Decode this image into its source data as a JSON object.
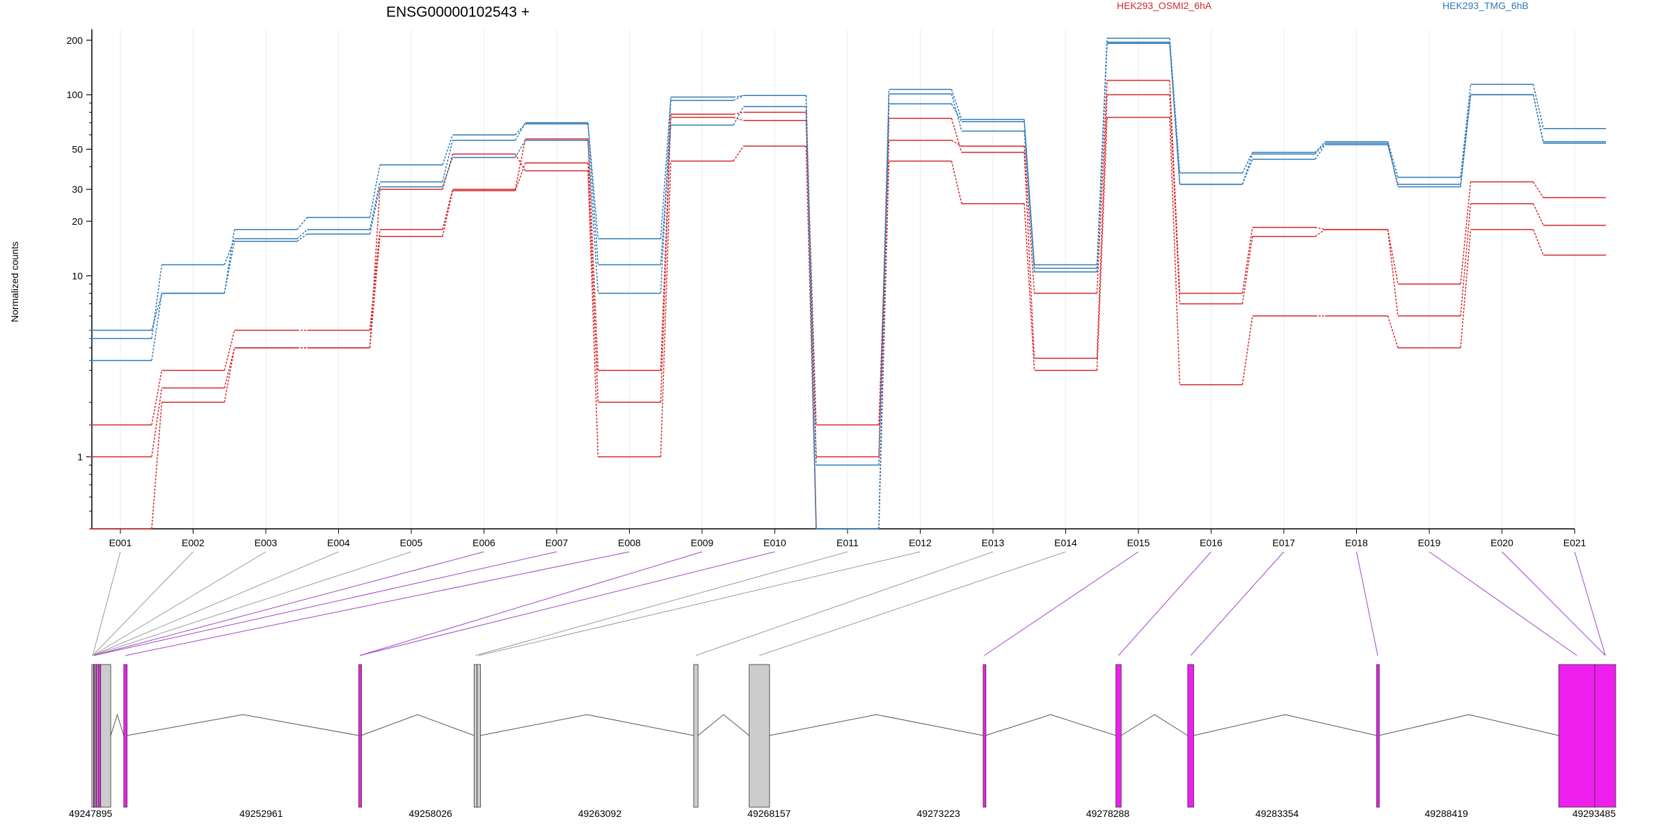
{
  "chart_data": {
    "type": "line",
    "title": "ENSG00000102543 +",
    "ylabel": "Normalized counts",
    "xlabel": "",
    "yscale": "log",
    "ylim": [
      0.4,
      230
    ],
    "yticks": [
      1,
      10,
      20,
      30,
      50,
      100,
      200
    ],
    "grid": "vertical-light",
    "legend_position": "top-right",
    "colors": {
      "HEK293_OSMI2_6hA": "#d62728",
      "HEK293_TMG_6hB": "#2f7ab8",
      "highlight": "#ee1fee",
      "exon_gray": "#cccccc"
    },
    "categories": [
      "E001",
      "E002",
      "E003",
      "E004",
      "E005",
      "E006",
      "E007",
      "E008",
      "E009",
      "E010",
      "E011",
      "E012",
      "E013",
      "E014",
      "E015",
      "E016",
      "E017",
      "E018",
      "E019",
      "E020",
      "E021"
    ],
    "series": [
      {
        "name": "HEK293_OSMI2_6hA",
        "values": [
          1.5,
          3,
          5,
          5,
          18,
          30,
          57,
          3,
          78,
          80,
          1.5,
          56,
          52,
          8,
          120,
          8,
          18.5,
          18,
          9,
          33,
          27
        ]
      },
      {
        "name": "HEK293_OSMI2_6hA",
        "values": [
          1.0,
          2.4,
          4,
          4,
          16.5,
          29.5,
          42,
          2,
          75,
          72,
          1.0,
          74,
          48,
          3.5,
          100,
          7,
          16.5,
          18,
          6,
          25,
          19
        ]
      },
      {
        "name": "HEK293_OSMI2_6hA",
        "values": [
          0.4,
          2,
          4,
          4,
          30,
          47,
          38,
          1.0,
          43,
          52,
          0.4,
          43,
          25,
          3,
          75,
          2.5,
          6,
          6,
          4,
          18,
          13
        ]
      },
      {
        "name": "HEK293_TMG_6hB",
        "values": [
          5,
          8,
          18,
          21,
          41,
          60,
          69,
          16,
          97,
          99,
          0.9,
          107,
          73,
          11.5,
          205,
          37,
          48,
          55,
          35,
          114,
          65
        ]
      },
      {
        "name": "HEK293_TMG_6hB",
        "values": [
          4.5,
          11.5,
          16,
          18,
          33,
          56,
          70,
          11.5,
          68,
          86,
          0.4,
          89,
          71,
          11,
          195,
          32,
          47,
          54,
          31,
          100,
          55
        ]
      },
      {
        "name": "HEK293_TMG_6hB",
        "values": [
          3.4,
          8,
          15.5,
          17,
          31,
          45,
          56,
          8,
          93,
          99,
          0.4,
          101,
          63,
          10.5,
          192,
          32,
          44,
          53,
          32,
          100,
          54
        ]
      }
    ],
    "gene_model": {
      "coords": [
        "49247895",
        "49252961",
        "49258026",
        "49263092",
        "49268157",
        "49273223",
        "49278288",
        "49283354",
        "49288419",
        "49293485"
      ],
      "exons": [
        {
          "id": "E001",
          "start": 49247895,
          "end": 49247945,
          "color": "gray"
        },
        {
          "id": "E002",
          "start": 49247945,
          "end": 49247975,
          "color": "magenta"
        },
        {
          "id": "E003",
          "start": 49247975,
          "end": 49248015,
          "color": "gray"
        },
        {
          "id": "E004",
          "start": 49248015,
          "end": 49248050,
          "color": "magenta"
        },
        {
          "id": "E005",
          "start": 49248050,
          "end": 49248090,
          "color": "gray"
        },
        {
          "id": "E006",
          "start": 49248090,
          "end": 49248120,
          "color": "magenta"
        },
        {
          "id": "E007",
          "start": 49248160,
          "end": 49248460,
          "color": "gray"
        },
        {
          "id": "E008",
          "start": 49248850,
          "end": 49248950,
          "color": "magenta"
        },
        {
          "id": "E009",
          "start": 49255880,
          "end": 49255950,
          "color": "magenta"
        },
        {
          "id": "E010",
          "start": 49259330,
          "end": 49259420,
          "color": "gray"
        },
        {
          "id": "E011",
          "start": 49259420,
          "end": 49259520,
          "color": "gray"
        },
        {
          "id": "E012",
          "start": 49265900,
          "end": 49266030,
          "color": "gray"
        },
        {
          "id": "E013",
          "start": 49267560,
          "end": 49268170,
          "color": "gray"
        },
        {
          "id": "E014",
          "start": 49274560,
          "end": 49274630,
          "color": "magenta"
        },
        {
          "id": "E015",
          "start": 49278530,
          "end": 49278690,
          "color": "magenta"
        },
        {
          "id": "E016",
          "start": 49280680,
          "end": 49280860,
          "color": "magenta"
        },
        {
          "id": "E017",
          "start": 49286330,
          "end": 49286400,
          "color": "magenta"
        },
        {
          "id": "E018",
          "start": 49291780,
          "end": 49292860,
          "color": "magenta"
        },
        {
          "id": "E019",
          "start": 49292860,
          "end": 49293485,
          "color": "magenta"
        }
      ],
      "links": [
        {
          "label": "E001",
          "target": "E001",
          "color": "gray"
        },
        {
          "label": "E002",
          "target": "E001",
          "color": "gray"
        },
        {
          "label": "E003",
          "target": "E001",
          "color": "gray"
        },
        {
          "label": "E004",
          "target": "E001",
          "color": "gray"
        },
        {
          "label": "E005",
          "target": "E001",
          "color": "gray"
        },
        {
          "label": "E006",
          "target": "E002",
          "color": "magenta"
        },
        {
          "label": "E007",
          "target": "E002",
          "color": "magenta"
        },
        {
          "label": "E008",
          "target": "E008",
          "color": "magenta"
        },
        {
          "label": "E009",
          "target": "E009",
          "color": "magenta"
        },
        {
          "label": "E010",
          "target": "E009",
          "color": "magenta"
        },
        {
          "label": "E011",
          "target": "E010",
          "color": "gray"
        },
        {
          "label": "E012",
          "target": "E011",
          "color": "gray"
        },
        {
          "label": "E013",
          "target": "E012",
          "color": "gray"
        },
        {
          "label": "E014",
          "target": "E013",
          "color": "gray"
        },
        {
          "label": "E015",
          "target": "E014",
          "color": "magenta"
        },
        {
          "label": "E016",
          "target": "E015",
          "color": "magenta"
        },
        {
          "label": "E017",
          "target": "E016",
          "color": "magenta"
        },
        {
          "label": "E018",
          "target": "E017",
          "color": "magenta"
        },
        {
          "label": "E019",
          "target": "E018",
          "color": "magenta"
        },
        {
          "label": "E020",
          "target": "E019",
          "color": "magenta"
        },
        {
          "label": "E021",
          "target": "E019",
          "color": "magenta"
        }
      ]
    }
  }
}
